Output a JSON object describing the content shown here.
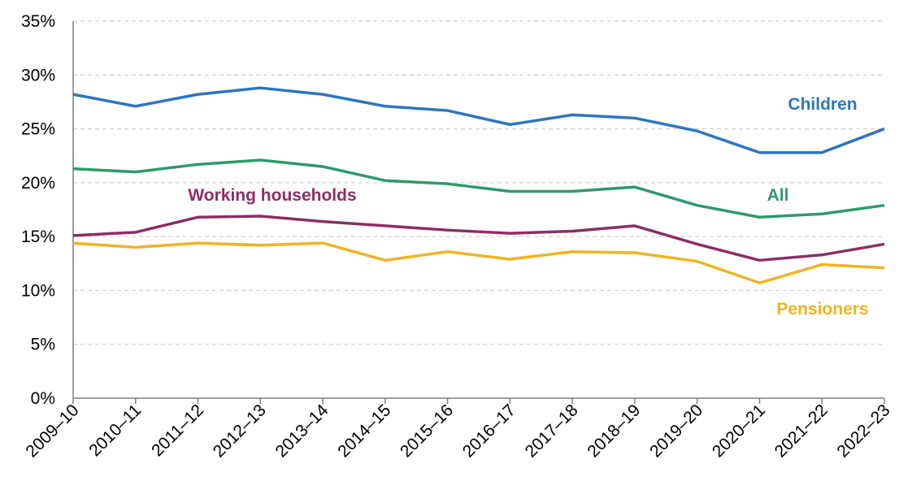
{
  "chart_data": {
    "type": "line",
    "categories": [
      "2009–10",
      "2010–11",
      "2011–12",
      "2012–13",
      "2013–14",
      "2014–15",
      "2015–16",
      "2016–17",
      "2017–18",
      "2018–19",
      "2019–20",
      "2020–21",
      "2021–22",
      "2022–23"
    ],
    "series": [
      {
        "name": "Children",
        "color": "#2e75c0",
        "values": [
          28.2,
          27.1,
          28.2,
          28.8,
          28.2,
          27.1,
          26.7,
          25.4,
          26.3,
          26.0,
          24.8,
          22.8,
          22.8,
          25.0
        ]
      },
      {
        "name": "All",
        "color": "#2e9a6d",
        "values": [
          21.3,
          21.0,
          21.7,
          22.1,
          21.5,
          20.2,
          19.9,
          19.2,
          19.2,
          19.6,
          17.9,
          16.8,
          17.1,
          17.9
        ]
      },
      {
        "name": "Working households",
        "color": "#8b2f64",
        "values": [
          15.1,
          15.4,
          16.8,
          16.9,
          16.4,
          16.0,
          15.6,
          15.3,
          15.5,
          16.0,
          14.3,
          12.8,
          13.3,
          14.3
        ]
      },
      {
        "name": "Pensioners",
        "color": "#f0b323",
        "values": [
          14.4,
          14.0,
          14.4,
          14.2,
          14.4,
          12.8,
          13.6,
          12.9,
          13.6,
          13.5,
          12.7,
          10.7,
          12.4,
          12.1
        ]
      }
    ],
    "ylim": [
      0,
      35
    ],
    "yticks": [
      {
        "value": 0,
        "label": "0%"
      },
      {
        "value": 5,
        "label": "5%"
      },
      {
        "value": 10,
        "label": "10%"
      },
      {
        "value": 15,
        "label": "15%"
      },
      {
        "value": 20,
        "label": "20%"
      },
      {
        "value": 25,
        "label": "25%"
      },
      {
        "value": 30,
        "label": "30%"
      },
      {
        "value": 35,
        "label": "35%"
      }
    ],
    "grid": true
  }
}
